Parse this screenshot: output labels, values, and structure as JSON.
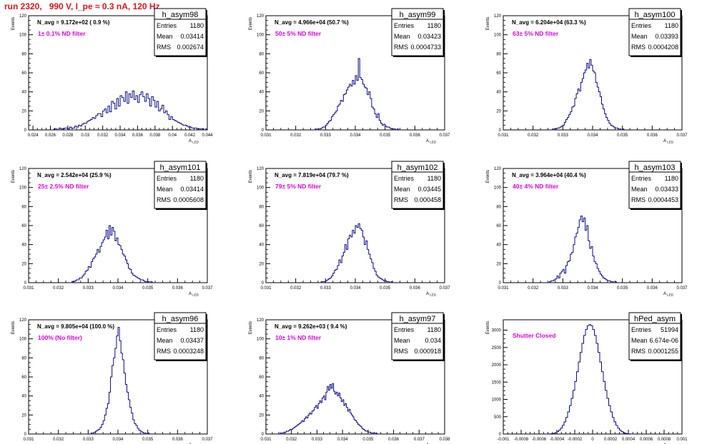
{
  "page_title": "run 2320,   990 V, I_pe ≈ 0.3 nA, 120 Hz",
  "colors": {
    "title": "#e8111b",
    "annotation": "#e000e0",
    "hist_line": "#0a0a8c",
    "axis": "#000000"
  },
  "ylabel": "Events",
  "xlabel_main": "A",
  "xlabel_sub": "LED",
  "stat_labels": {
    "entries": "Entries",
    "mean": "Mean",
    "rms": "RMS"
  },
  "chart_data": [
    {
      "type": "histogram",
      "name": "h_asym98",
      "avg_text": "N_avg = 9.172e+02 ( 0.9 %)",
      "note": "1± 0.1% ND filter",
      "entries": "1180",
      "mean": "0.03414",
      "rms": "0.002674",
      "xlim": [
        0.0235,
        0.044
      ],
      "ylim": [
        0,
        120
      ],
      "xticks": [
        0.024,
        0.026,
        0.028,
        0.03,
        0.032,
        0.034,
        0.036,
        0.038,
        0.04,
        0.042,
        0.044
      ],
      "xtick_labels": [
        "0.024",
        "0.026",
        "0.028",
        "0.03",
        "0.032",
        "0.034",
        "0.036",
        "0.038",
        "0.04",
        "0.042",
        "0.044"
      ],
      "yticks": [
        0,
        20,
        40,
        60,
        80,
        100,
        120
      ],
      "bin_width": 0.0002,
      "bin_start": 0.0264,
      "counts": [
        1,
        1,
        0,
        2,
        1,
        1,
        2,
        2,
        1,
        3,
        2,
        2,
        4,
        3,
        5,
        4,
        6,
        7,
        7,
        9,
        10,
        11,
        13,
        12,
        15,
        17,
        17,
        14,
        20,
        22,
        18,
        25,
        19,
        30,
        28,
        22,
        33,
        25,
        36,
        34,
        30,
        40,
        28,
        38,
        34,
        41,
        32,
        36,
        29,
        37,
        40,
        35,
        30,
        38,
        33,
        25,
        35,
        31,
        24,
        30,
        20,
        22,
        26,
        18,
        20,
        16,
        11,
        14,
        11,
        10,
        9,
        8,
        7,
        6,
        5,
        5,
        4,
        3,
        3,
        2,
        2,
        2,
        1,
        1,
        1,
        1,
        0,
        1
      ]
    },
    {
      "type": "histogram",
      "name": "h_asym99",
      "avg_text": "N_avg = 4.966e+04 (50.7 %)",
      "note": "50± 5% ND filter",
      "entries": "1180",
      "mean": "0.03423",
      "rms": "0.0004733",
      "xlim": [
        0.031,
        0.037
      ],
      "ylim": [
        0,
        120
      ],
      "xticks": [
        0.031,
        0.032,
        0.033,
        0.034,
        0.035,
        0.036,
        0.037
      ],
      "xtick_labels": [
        "0.031",
        "0.032",
        "0.033",
        "0.034",
        "0.035",
        "0.036",
        "0.037"
      ],
      "yticks": [
        0,
        20,
        40,
        60,
        80,
        100,
        120
      ],
      "bin_width": 5e-05,
      "bin_start": 0.0326,
      "counts": [
        0,
        1,
        0,
        1,
        1,
        2,
        3,
        3,
        5,
        7,
        9,
        10,
        14,
        16,
        18,
        20,
        25,
        27,
        31,
        30,
        37,
        38,
        42,
        45,
        48,
        46,
        52,
        48,
        57,
        52,
        75,
        55,
        53,
        48,
        45,
        44,
        37,
        40,
        33,
        24,
        22,
        17,
        13,
        17,
        10,
        7,
        5,
        6,
        4,
        3,
        3,
        2,
        1,
        1,
        1,
        0,
        1
      ]
    },
    {
      "type": "histogram",
      "name": "h_asym100",
      "avg_text": "N_avg = 6.204e+04 (63.3 %)",
      "note": "63± 5% ND filter",
      "entries": "1180",
      "mean": "0.03393",
      "rms": "0.0004208",
      "xlim": [
        0.031,
        0.037
      ],
      "ylim": [
        0,
        120
      ],
      "xticks": [
        0.031,
        0.032,
        0.033,
        0.034,
        0.035,
        0.036,
        0.037
      ],
      "xtick_labels": [
        "0.031",
        "0.032",
        "0.033",
        "0.034",
        "0.035",
        "0.036",
        "0.037"
      ],
      "yticks": [
        0,
        20,
        40,
        60,
        80,
        100,
        120
      ],
      "bin_width": 5e-05,
      "bin_start": 0.0326,
      "counts": [
        0,
        1,
        1,
        1,
        2,
        2,
        3,
        4,
        5,
        8,
        11,
        13,
        16,
        19,
        24,
        25,
        33,
        38,
        43,
        41,
        50,
        54,
        60,
        63,
        70,
        65,
        74,
        68,
        62,
        60,
        50,
        45,
        40,
        35,
        27,
        22,
        17,
        13,
        10,
        7,
        5,
        4,
        3,
        2,
        2,
        1,
        1,
        0,
        1
      ]
    },
    {
      "type": "histogram",
      "name": "h_asym101",
      "avg_text": "N_avg = 2.542e+04 (25.9 %)",
      "note": "25± 2.5% ND filter",
      "entries": "1180",
      "mean": "0.03414",
      "rms": "0.0005608",
      "xlim": [
        0.031,
        0.037
      ],
      "ylim": [
        0,
        120
      ],
      "xticks": [
        0.031,
        0.032,
        0.033,
        0.034,
        0.035,
        0.036,
        0.037
      ],
      "xtick_labels": [
        "0.031",
        "0.032",
        "0.033",
        "0.034",
        "0.035",
        "0.036",
        "0.037"
      ],
      "yticks": [
        0,
        20,
        40,
        60,
        80,
        100,
        120
      ],
      "bin_width": 5e-05,
      "bin_start": 0.0324,
      "counts": [
        0,
        1,
        1,
        2,
        3,
        3,
        5,
        5,
        7,
        9,
        12,
        13,
        17,
        16,
        22,
        25,
        27,
        30,
        35,
        32,
        38,
        42,
        45,
        48,
        55,
        46,
        60,
        50,
        58,
        54,
        44,
        47,
        40,
        39,
        35,
        30,
        28,
        24,
        20,
        15,
        14,
        10,
        8,
        7,
        6,
        5,
        4,
        3,
        3,
        2,
        1,
        1,
        1,
        0,
        1
      ]
    },
    {
      "type": "histogram",
      "name": "h_asym102",
      "avg_text": "N_avg = 7.819e+04 (79.7 %)",
      "note": "79± 5% ND filter",
      "entries": "1180",
      "mean": "0.03445",
      "rms": "0.000458",
      "xlim": [
        0.031,
        0.037
      ],
      "ylim": [
        0,
        120
      ],
      "xticks": [
        0.031,
        0.032,
        0.033,
        0.034,
        0.035,
        0.036,
        0.037
      ],
      "xtick_labels": [
        "0.031",
        "0.032",
        "0.033",
        "0.034",
        "0.035",
        "0.036",
        "0.037"
      ],
      "yticks": [
        0,
        20,
        40,
        60,
        80,
        100,
        120
      ],
      "bin_width": 5e-05,
      "bin_start": 0.0328,
      "counts": [
        0,
        1,
        1,
        1,
        2,
        3,
        4,
        5,
        7,
        10,
        13,
        14,
        18,
        24,
        21,
        28,
        32,
        40,
        35,
        46,
        50,
        48,
        55,
        52,
        60,
        58,
        62,
        57,
        55,
        48,
        40,
        44,
        35,
        30,
        25,
        21,
        15,
        12,
        8,
        6,
        5,
        4,
        3,
        2,
        2,
        1,
        1,
        0,
        1
      ]
    },
    {
      "type": "histogram",
      "name": "h_asym103",
      "avg_text": "N_avg = 3.964e+04 (40.4 %)",
      "note": "40± 4% ND filter",
      "entries": "1180",
      "mean": "0.03433",
      "rms": "0.0004453",
      "xlim": [
        0.031,
        0.037
      ],
      "ylim": [
        0,
        120
      ],
      "xticks": [
        0.031,
        0.032,
        0.033,
        0.034,
        0.035,
        0.036,
        0.037
      ],
      "xtick_labels": [
        "0.031",
        "0.032",
        "0.033",
        "0.034",
        "0.035",
        "0.036",
        "0.037"
      ],
      "yticks": [
        0,
        20,
        40,
        60,
        80,
        100,
        120
      ],
      "bin_width": 5e-05,
      "bin_start": 0.0325,
      "counts": [
        0,
        1,
        2,
        2,
        3,
        4,
        7,
        5,
        10,
        12,
        14,
        10,
        18,
        22,
        23,
        30,
        32,
        40,
        48,
        52,
        58,
        66,
        70,
        64,
        68,
        55,
        60,
        44,
        36,
        38,
        28,
        22,
        20,
        15,
        12,
        9,
        7,
        5,
        4,
        3,
        2,
        2,
        1,
        1,
        0,
        1
      ]
    },
    {
      "type": "histogram",
      "name": "h_asym96",
      "avg_text": "N_avg = 9.805e+04 (100.0 %)",
      "note": "100% (No filter)",
      "entries": "1180",
      "mean": "0.03437",
      "rms": "0.0003248",
      "xlim": [
        0.031,
        0.037
      ],
      "ylim": [
        0,
        120
      ],
      "xticks": [
        0.031,
        0.032,
        0.033,
        0.034,
        0.035,
        0.036,
        0.037
      ],
      "xtick_labels": [
        "0.031",
        "0.032",
        "0.033",
        "0.034",
        "0.035",
        "0.036",
        "0.037"
      ],
      "yticks": [
        0,
        20,
        40,
        60,
        80,
        100,
        120
      ],
      "bin_width": 5e-05,
      "bin_start": 0.0331,
      "counts": [
        1,
        1,
        2,
        3,
        4,
        5,
        7,
        10,
        14,
        20,
        27,
        32,
        44,
        60,
        72,
        80,
        90,
        103,
        112,
        98,
        85,
        78,
        64,
        52,
        44,
        36,
        28,
        22,
        15,
        11,
        9,
        6,
        4,
        3,
        2,
        1,
        1,
        0,
        1
      ]
    },
    {
      "type": "histogram",
      "name": "h_asym97",
      "avg_text": "N_avg = 9.262e+03 ( 9.4 %)",
      "note": "10± 1% ND filter",
      "entries": "1180",
      "mean": "0.034",
      "rms": "0.000918",
      "xlim": [
        0.031,
        0.038
      ],
      "ylim": [
        0,
        120
      ],
      "xticks": [
        0.031,
        0.032,
        0.033,
        0.034,
        0.035,
        0.036,
        0.037,
        0.038
      ],
      "xtick_labels": [
        "0.031",
        "0.032",
        "0.033",
        "0.034",
        "0.035",
        "0.036",
        "0.037",
        "0.038"
      ],
      "yticks": [
        0,
        20,
        40,
        60,
        80,
        100,
        120
      ],
      "bin_width": 5e-05,
      "bin_start": 0.0315,
      "counts": [
        0,
        1,
        1,
        1,
        2,
        2,
        3,
        3,
        4,
        5,
        5,
        6,
        7,
        8,
        9,
        10,
        11,
        12,
        14,
        13,
        16,
        18,
        17,
        20,
        22,
        21,
        24,
        25,
        28,
        30,
        27,
        32,
        35,
        33,
        38,
        40,
        36,
        44,
        50,
        46,
        52,
        48,
        53,
        45,
        42,
        44,
        40,
        43,
        38,
        34,
        36,
        30,
        32,
        28,
        24,
        26,
        22,
        20,
        18,
        15,
        14,
        12,
        10,
        9,
        8,
        6,
        5,
        4,
        3,
        3,
        2,
        2,
        1,
        1,
        1,
        0,
        1
      ]
    },
    {
      "type": "histogram",
      "name": "hPed_asym",
      "avg_text": "",
      "note": "Shutter Closed",
      "entries": "51994",
      "mean": "6.674e-06",
      "rms": "0.0001255",
      "xlim": [
        -0.001,
        0.001
      ],
      "ylim": [
        0,
        3300
      ],
      "xticks": [
        -0.001,
        -0.0008,
        -0.0006,
        -0.0004,
        -0.0002,
        0,
        0.0002,
        0.0004,
        0.0006,
        0.0008,
        0.001
      ],
      "xtick_labels": [
        "-0.001",
        "-0.0008",
        "-0.0006",
        "-0.0004",
        "-0.0002",
        "0",
        "0.0002",
        "0.0004",
        "0.0006",
        "0.0008",
        "0.001"
      ],
      "yticks": [
        0,
        500,
        1000,
        1500,
        2000,
        2500,
        3000
      ],
      "ytick_labels": [
        "0",
        "500",
        "1000",
        "1500",
        "2000",
        "2500",
        "3000"
      ],
      "bin_width": 2e-05,
      "bin_start": -0.00048,
      "counts": [
        5,
        10,
        20,
        40,
        70,
        110,
        170,
        250,
        350,
        480,
        640,
        820,
        1030,
        1260,
        1520,
        1800,
        2080,
        2360,
        2620,
        2850,
        3020,
        3130,
        3160,
        3130,
        3020,
        2850,
        2620,
        2360,
        2080,
        1800,
        1520,
        1260,
        1030,
        820,
        640,
        480,
        350,
        250,
        170,
        110,
        70,
        40,
        20,
        10,
        5,
        2,
        1
      ]
    }
  ]
}
